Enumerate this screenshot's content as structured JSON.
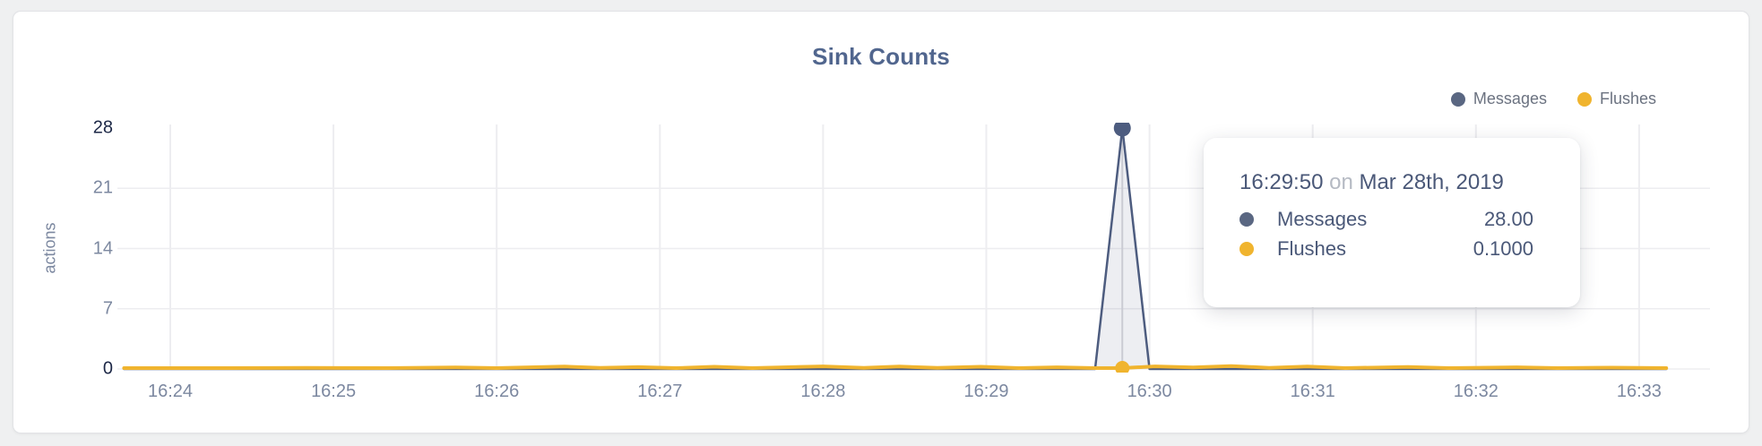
{
  "card": {
    "title": "Sink Counts"
  },
  "colors": {
    "messages": "#4d5c7f",
    "messages_dot": "#5a6782",
    "flushes": "#f0b42e",
    "grid": "#ededf0",
    "hover_line": "#d8d9dd",
    "tick_gray": "#7c88a0",
    "tick_dark": "#1d2847",
    "title_text": "#51668e",
    "area_fill": "rgba(77,92,127,0.10)"
  },
  "legend": {
    "items": [
      {
        "label": "Messages",
        "color": "#5a6782"
      },
      {
        "label": "Flushes",
        "color": "#f0b42e"
      }
    ]
  },
  "tooltip": {
    "time": "16:29:50",
    "connector": "on",
    "date": "Mar 28th, 2019",
    "rows": [
      {
        "label": "Messages",
        "value": "28.00",
        "color": "#5a6782"
      },
      {
        "label": "Flushes",
        "value": "0.1000",
        "color": "#f0b42e"
      }
    ]
  },
  "chart_data": {
    "type": "line",
    "title": "Sink Counts",
    "xlabel": "",
    "ylabel": "actions",
    "ylim": [
      0,
      28
    ],
    "grid": true,
    "legend_position": "top-right",
    "x_tick_labels": [
      "16:24",
      "16:25",
      "16:26",
      "16:27",
      "16:28",
      "16:29",
      "16:30",
      "16:31",
      "16:32",
      "16:33"
    ],
    "y_ticks": [
      {
        "value": 28,
        "emphasized": true
      },
      {
        "value": 21,
        "emphasized": false
      },
      {
        "value": 14,
        "emphasized": false
      },
      {
        "value": 7,
        "emphasized": false
      },
      {
        "value": 0,
        "emphasized": true
      }
    ],
    "hover": {
      "t_seconds": 350,
      "time_label": "16:29:50",
      "date_label": "Mar 28th, 2019",
      "values": {
        "Messages": 28,
        "Flushes": 0.1
      }
    },
    "series": [
      {
        "name": "Messages",
        "color": "#4d5c7f",
        "fill": "rgba(77,92,127,0.10)",
        "points": [
          [
            -17,
            0
          ],
          [
            340,
            0
          ],
          [
            350,
            28
          ],
          [
            360,
            0
          ],
          [
            550,
            0
          ]
        ]
      },
      {
        "name": "Flushes",
        "color": "#f0b42e",
        "fill": null,
        "points": [
          [
            -17,
            0.1
          ],
          [
            20,
            0.1
          ],
          [
            50,
            0.14
          ],
          [
            80,
            0.1
          ],
          [
            105,
            0.18
          ],
          [
            120,
            0.1
          ],
          [
            145,
            0.28
          ],
          [
            158,
            0.12
          ],
          [
            172,
            0.22
          ],
          [
            186,
            0.1
          ],
          [
            200,
            0.26
          ],
          [
            214,
            0.1
          ],
          [
            240,
            0.3
          ],
          [
            255,
            0.14
          ],
          [
            268,
            0.28
          ],
          [
            282,
            0.12
          ],
          [
            298,
            0.26
          ],
          [
            312,
            0.1
          ],
          [
            326,
            0.2
          ],
          [
            340,
            0.1
          ],
          [
            350,
            0.1
          ],
          [
            362,
            0.3
          ],
          [
            376,
            0.18
          ],
          [
            390,
            0.34
          ],
          [
            404,
            0.14
          ],
          [
            418,
            0.28
          ],
          [
            432,
            0.1
          ],
          [
            455,
            0.24
          ],
          [
            470,
            0.1
          ],
          [
            495,
            0.2
          ],
          [
            510,
            0.1
          ],
          [
            530,
            0.16
          ],
          [
            550,
            0.1
          ]
        ]
      }
    ]
  }
}
